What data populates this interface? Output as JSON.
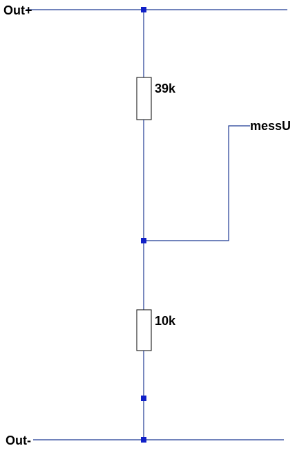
{
  "diagram": {
    "type": "voltage-divider-schematic",
    "nets": {
      "top": "Out+",
      "bottom": "Out-",
      "tap": "messU"
    },
    "components": [
      {
        "id": "R1",
        "value": "39k",
        "between": [
          "Out+",
          "messU"
        ]
      },
      {
        "id": "R2",
        "value": "10k",
        "between": [
          "messU",
          "Out-"
        ]
      }
    ],
    "colors": {
      "wire": "#1f3a93",
      "junction": "#1020c8",
      "resistor_outline": "#1a1a1a",
      "text": "#000000",
      "background": "#ffffff"
    }
  }
}
